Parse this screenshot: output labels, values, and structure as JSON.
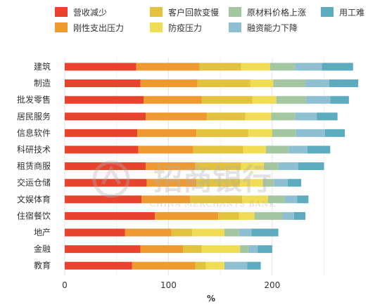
{
  "chart_data": {
    "type": "bar",
    "orientation": "horizontal",
    "stacked": true,
    "title": "",
    "xlabel": "%",
    "ylabel": "",
    "xlim": [
      0,
      260
    ],
    "xticks": [
      0,
      100,
      200
    ],
    "grid": true,
    "legend_position": "top",
    "categories": [
      "建筑",
      "制造",
      "批发零售",
      "居民服务",
      "信息软件",
      "科研技术",
      "租赁商服",
      "交运仓储",
      "文娱体育",
      "住宿餐饮",
      "地产",
      "金融",
      "教育"
    ],
    "series": [
      {
        "name": "营收减少",
        "color": "#e8432d",
        "values": [
          69,
          73,
          76,
          78,
          70,
          71,
          78,
          79,
          74,
          87,
          58,
          73,
          65
        ]
      },
      {
        "name": "刚性支出压力",
        "color": "#ee9a30",
        "values": [
          61,
          55,
          56,
          59,
          57,
          53,
          48,
          48,
          47,
          61,
          45,
          41,
          61
        ]
      },
      {
        "name": "客户回款变慢",
        "color": "#e2c23e",
        "values": [
          40,
          51,
          49,
          37,
          50,
          48,
          44,
          42,
          50,
          20,
          20,
          18,
          10
        ]
      },
      {
        "name": "防疫压力",
        "color": "#f1dc55",
        "values": [
          28,
          22,
          23,
          25,
          23,
          22,
          22,
          22,
          25,
          15,
          31,
          37,
          18
        ]
      },
      {
        "name": "原材料价格上涨",
        "color": "#a4c6a0",
        "values": [
          24,
          31,
          29,
          23,
          23,
          22,
          14,
          11,
          16,
          27,
          14,
          8,
          0
        ]
      },
      {
        "name": "融资能力下降",
        "color": "#8ec0d2",
        "values": [
          26,
          23,
          23,
          21,
          28,
          18,
          19,
          13,
          12,
          11,
          12,
          9,
          22
        ]
      },
      {
        "name": "用工难",
        "color": "#5cabbf",
        "values": [
          30,
          28,
          18,
          20,
          19,
          22,
          25,
          13,
          11,
          11,
          26,
          14,
          13
        ]
      }
    ]
  },
  "watermark": {
    "text": "招商银行",
    "subtext": "CHINA MERCHANTS BANK"
  }
}
